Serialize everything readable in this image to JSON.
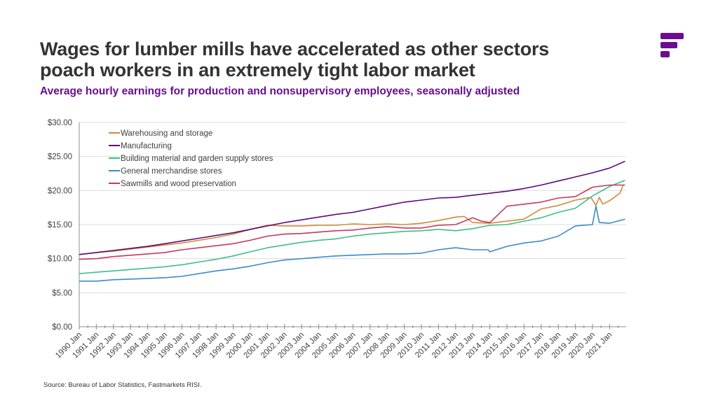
{
  "header": {
    "title_line1": "Wages for lumber mills have accelerated as other sectors",
    "title_line2": "poach workers in an extremely tight labor market",
    "subtitle": "Average hourly earnings for production and nonsupervisory employees, seasonally adjusted"
  },
  "logo": {
    "name": "fastmarkets-logo-icon",
    "color": "#6a0d91"
  },
  "footer": {
    "source": "Source: Bureau of Labor Statistics, Fastmarkets RISI."
  },
  "chart_data": {
    "type": "line",
    "title": "",
    "xlabel": "",
    "ylabel": "",
    "ylim": [
      0,
      30
    ],
    "xlim": [
      1990,
      2022
    ],
    "grid": true,
    "legend_position": "top-left",
    "y_ticks": [
      "$0.00",
      "$5.00",
      "$10.00",
      "$15.00",
      "$20.00",
      "$25.00",
      "$30.00"
    ],
    "y_tick_values": [
      0,
      5,
      10,
      15,
      20,
      25,
      30
    ],
    "x_ticks": [
      "1990 Jan",
      "1991 Jan",
      "1992 Jan",
      "1993 Jan",
      "1994 Jan",
      "1995 Jan",
      "1996 Jan",
      "1997 Jan",
      "1998 Jan",
      "1999 Jan",
      "2000 Jan",
      "2001 Jan",
      "2002 Jan",
      "2003 Jan",
      "2004 Jan",
      "2005 Jan",
      "2006 Jan",
      "2007 Jan",
      "2008 Jan",
      "2009 Jan",
      "2010 Jan",
      "2011 Jan",
      "2012 Jan",
      "2013 Jan",
      "2014 Jan",
      "2015 Jan",
      "2016 Jan",
      "2017 Jan",
      "2018 Jan",
      "2019 Jan",
      "2020 Jan",
      "2021 Jan"
    ],
    "series": [
      {
        "name": "Warehousing and storage",
        "color": "#d08b3c",
        "x": [
          1990,
          1991,
          1992,
          1993,
          1994,
          1995,
          1996,
          1997,
          1998,
          1999,
          2000,
          2001,
          2002,
          2003,
          2004,
          2005,
          2006,
          2007,
          2008,
          2009,
          2010,
          2011,
          2012,
          2012.5,
          2013,
          2014,
          2015,
          2016,
          2017,
          2018,
          2019,
          2019.9,
          2020.2,
          2020.4,
          2020.6,
          2021,
          2021.6,
          2021.8
        ],
        "values": [
          10.6,
          10.9,
          11.1,
          11.4,
          11.7,
          12.0,
          12.3,
          12.7,
          13.1,
          13.6,
          14.3,
          14.9,
          14.8,
          14.8,
          14.9,
          14.9,
          15.1,
          15.0,
          15.1,
          15.0,
          15.2,
          15.6,
          16.1,
          16.2,
          15.3,
          15.2,
          15.5,
          15.8,
          17.3,
          17.8,
          18.6,
          19.0,
          17.8,
          19.0,
          18.0,
          18.5,
          19.6,
          20.8
        ]
      },
      {
        "name": "Manufacturing",
        "color": "#5c0a78",
        "x": [
          1990,
          1991,
          1992,
          1993,
          1994,
          1995,
          1996,
          1997,
          1998,
          1999,
          2000,
          2001,
          2002,
          2003,
          2004,
          2005,
          2006,
          2007,
          2008,
          2009,
          2010,
          2011,
          2012,
          2013,
          2014,
          2015,
          2016,
          2017,
          2018,
          2019,
          2020,
          2021,
          2021.9
        ],
        "values": [
          10.6,
          10.9,
          11.2,
          11.5,
          11.8,
          12.2,
          12.6,
          13.0,
          13.4,
          13.8,
          14.3,
          14.8,
          15.3,
          15.7,
          16.1,
          16.5,
          16.8,
          17.3,
          17.8,
          18.3,
          18.6,
          18.9,
          19.0,
          19.3,
          19.6,
          19.9,
          20.3,
          20.8,
          21.4,
          22.0,
          22.6,
          23.3,
          24.3
        ]
      },
      {
        "name": "Building material and garden supply stores",
        "color": "#3cbf86",
        "x": [
          1990,
          1991,
          1992,
          1993,
          1994,
          1995,
          1996,
          1997,
          1998,
          1999,
          2000,
          2001,
          2002,
          2003,
          2004,
          2005,
          2006,
          2007,
          2008,
          2009,
          2010,
          2011,
          2012,
          2013,
          2014,
          2015,
          2016,
          2017,
          2018,
          2019,
          2020,
          2021,
          2021.9
        ],
        "values": [
          7.8,
          8.0,
          8.2,
          8.4,
          8.6,
          8.8,
          9.1,
          9.5,
          9.9,
          10.4,
          11.0,
          11.6,
          12.0,
          12.4,
          12.7,
          12.9,
          13.3,
          13.6,
          13.8,
          14.0,
          14.1,
          14.3,
          14.1,
          14.4,
          14.9,
          15.0,
          15.5,
          16.0,
          16.8,
          17.4,
          19.2,
          20.6,
          21.5
        ]
      },
      {
        "name": "General merchandise stores",
        "color": "#3a8cc8",
        "x": [
          1990,
          1991,
          1992,
          1993,
          1994,
          1995,
          1996,
          1997,
          1998,
          1999,
          2000,
          2001,
          2002,
          2003,
          2004,
          2005,
          2006,
          2007,
          2008,
          2009,
          2010,
          2011,
          2012,
          2013,
          2013.9,
          2014,
          2015,
          2016,
          2017,
          2018,
          2019,
          2020,
          2020.2,
          2020.4,
          2021,
          2021.9
        ],
        "values": [
          6.7,
          6.7,
          6.9,
          7.0,
          7.1,
          7.2,
          7.4,
          7.8,
          8.2,
          8.5,
          8.9,
          9.4,
          9.8,
          10.0,
          10.2,
          10.4,
          10.5,
          10.6,
          10.7,
          10.7,
          10.8,
          11.3,
          11.6,
          11.3,
          11.3,
          11.0,
          11.8,
          12.3,
          12.6,
          13.3,
          14.8,
          15.0,
          17.7,
          15.3,
          15.2,
          15.8
        ]
      },
      {
        "name": "Sawmills and wood preservation",
        "color": "#c8385a",
        "x": [
          1990,
          1991,
          1992,
          1993,
          1994,
          1995,
          1996,
          1997,
          1998,
          1999,
          2000,
          2001,
          2002,
          2003,
          2004,
          2005,
          2006,
          2007,
          2008,
          2009,
          2010,
          2011,
          2012,
          2013,
          2013.5,
          2014,
          2015,
          2016,
          2017,
          2018,
          2019,
          2020,
          2021,
          2021.9
        ],
        "values": [
          9.9,
          10.0,
          10.3,
          10.5,
          10.7,
          10.9,
          11.3,
          11.6,
          11.9,
          12.2,
          12.7,
          13.3,
          13.6,
          13.7,
          13.9,
          14.1,
          14.2,
          14.5,
          14.7,
          14.5,
          14.5,
          14.9,
          15.0,
          16.0,
          15.5,
          15.3,
          17.7,
          18.0,
          18.3,
          18.9,
          19.1,
          20.5,
          20.8,
          20.8
        ]
      }
    ]
  }
}
